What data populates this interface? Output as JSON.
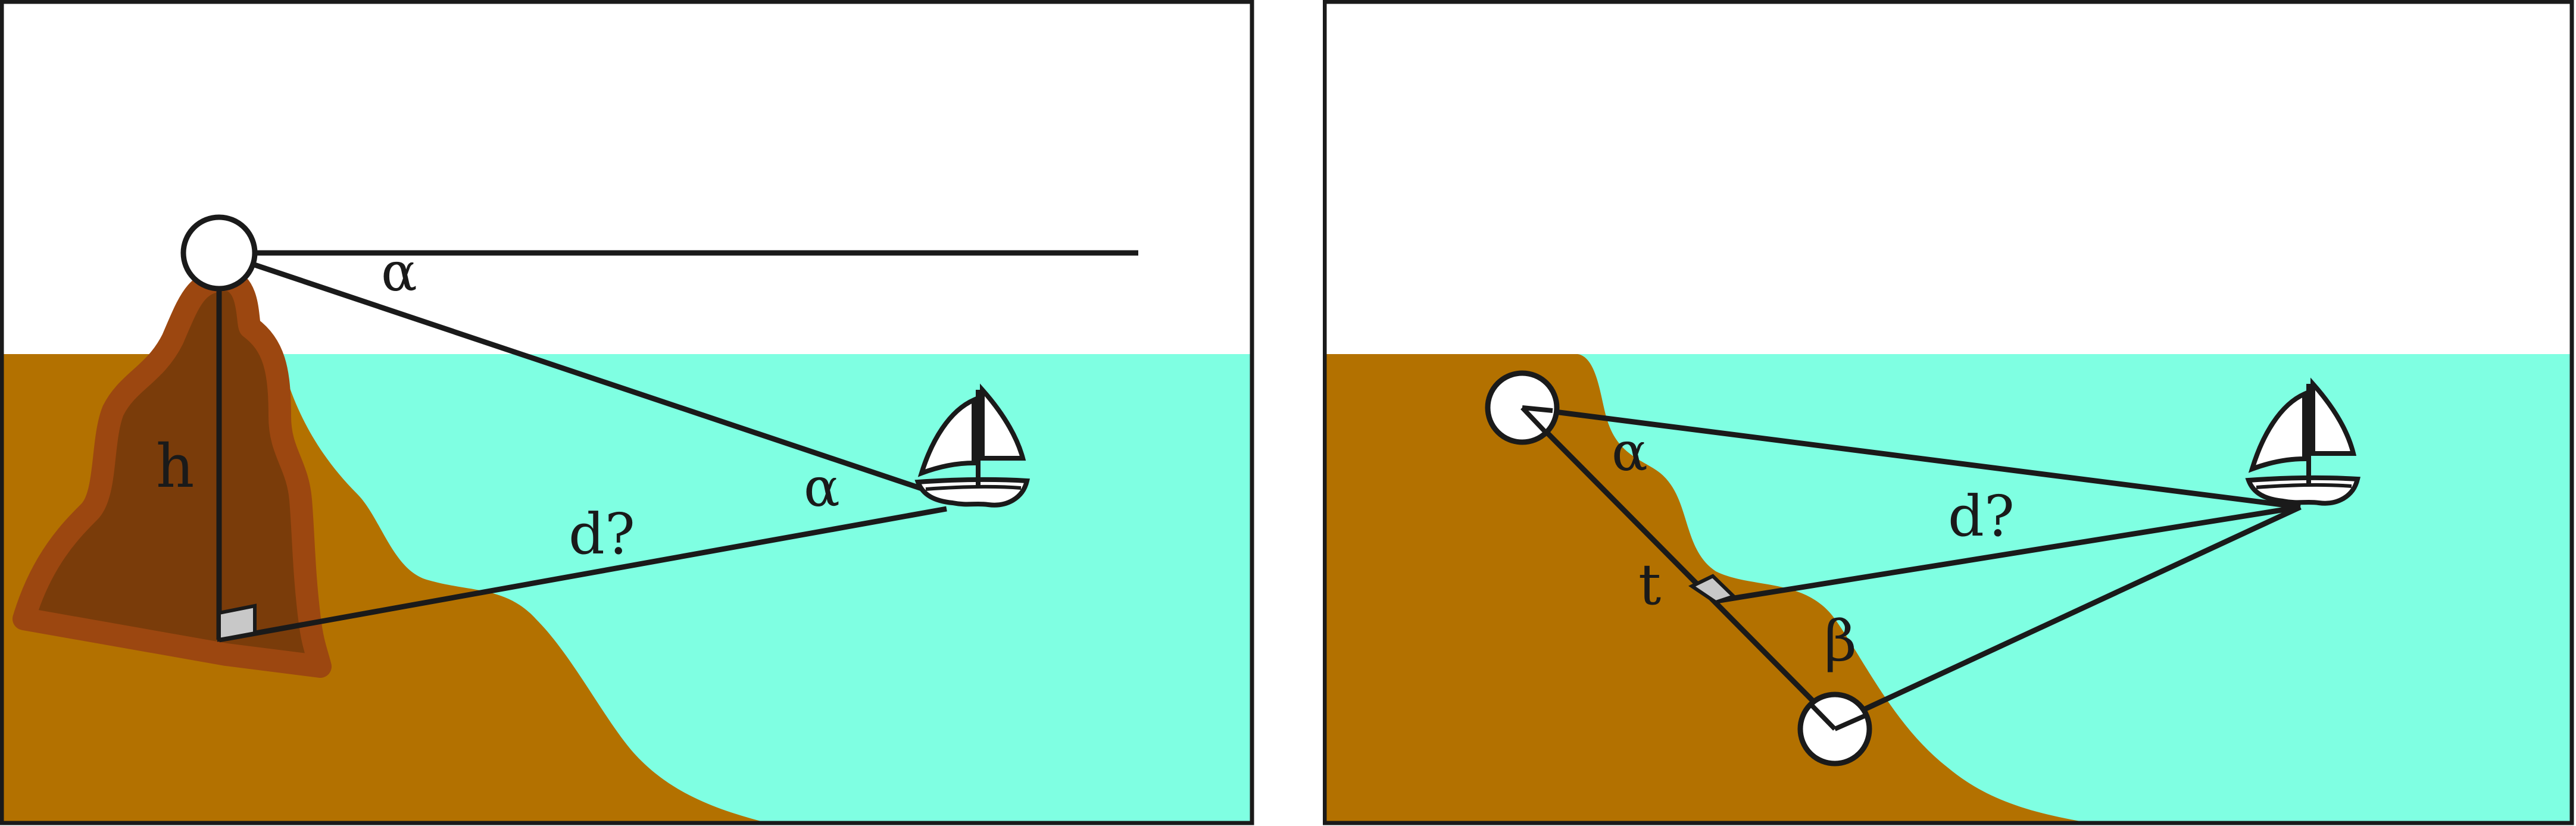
{
  "colors": {
    "sky": "#ffffff",
    "sea": "#7fffe2",
    "land": "#b37100",
    "mountain": "#7a3c0a",
    "mountain_edge": "#9c4710",
    "line": "#1a1a1a",
    "right_angle_marker": "#c8c8c8"
  },
  "left_diagram": {
    "label_alpha_top": "α",
    "label_alpha_boat": "α",
    "label_height": "h",
    "label_distance": "d?"
  },
  "right_diagram": {
    "label_alpha": "α",
    "label_beta": "β",
    "label_baseline": "t",
    "label_distance": "d?"
  },
  "icons": [
    "observer-circle-icon",
    "sailboat-icon",
    "right-angle-marker-icon"
  ]
}
